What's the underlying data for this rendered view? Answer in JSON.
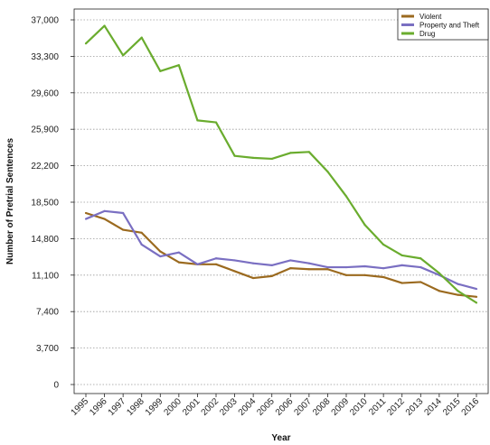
{
  "chart_data": {
    "type": "line",
    "title": "",
    "xlabel": "Year",
    "ylabel": "Number of Pretrial Sentences",
    "x": [
      "1995",
      "1996",
      "1997",
      "1998",
      "1999",
      "2000",
      "2001",
      "2002",
      "2003",
      "2004",
      "2005",
      "2006",
      "2007",
      "2008",
      "2009",
      "2010",
      "2011",
      "2012",
      "2013",
      "2014",
      "2015",
      "2016"
    ],
    "yticks": [
      "0",
      "3,700",
      "7,400",
      "11,100",
      "14,800",
      "18,500",
      "22,200",
      "25,900",
      "29,600",
      "33,300",
      "37,000"
    ],
    "ylim": [
      0,
      37000
    ],
    "grid": true,
    "legend_position": "top-right",
    "series": [
      {
        "name": "Violent",
        "color": "#9b6a1f",
        "values": [
          17400,
          16800,
          15700,
          15400,
          13500,
          12400,
          12200,
          12200,
          11500,
          10800,
          11000,
          11800,
          11700,
          11700,
          11100,
          11100,
          10900,
          10300,
          10400,
          9500,
          9100,
          8900
        ]
      },
      {
        "name": "Property and Theft",
        "color": "#7a6fc2",
        "values": [
          16800,
          17600,
          17400,
          14200,
          13000,
          13400,
          12200,
          12800,
          12600,
          12300,
          12100,
          12600,
          12300,
          11900,
          11900,
          12000,
          11800,
          12100,
          11900,
          11100,
          10200,
          9700
        ]
      },
      {
        "name": "Drug",
        "color": "#6aac2e",
        "values": [
          34600,
          36400,
          33400,
          35200,
          31800,
          32400,
          26800,
          26600,
          23200,
          23000,
          22900,
          23500,
          23600,
          21600,
          19100,
          16200,
          14200,
          13100,
          12800,
          11300,
          9500,
          8300
        ]
      }
    ]
  }
}
